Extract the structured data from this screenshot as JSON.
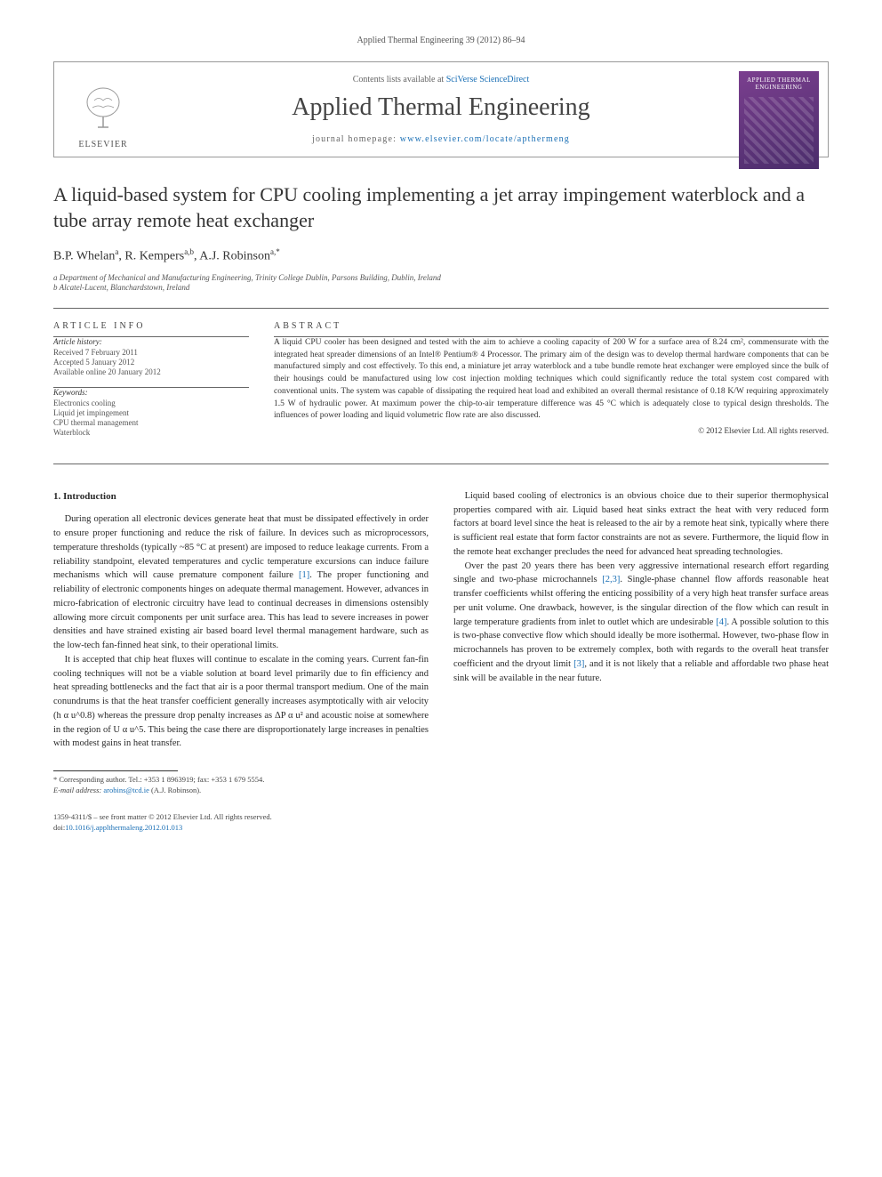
{
  "running_head": "Applied Thermal Engineering 39 (2012) 86–94",
  "masthead": {
    "contents_prefix": "Contents lists available at ",
    "contents_link": "SciVerse ScienceDirect",
    "journal_name": "Applied Thermal Engineering",
    "homepage_prefix": "journal homepage: ",
    "homepage_link": "www.elsevier.com/locate/apthermeng",
    "publisher_label": "ELSEVIER",
    "cover_title": "APPLIED THERMAL ENGINEERING"
  },
  "article": {
    "title": "A liquid-based system for CPU cooling implementing a jet array impingement waterblock and a tube array remote heat exchanger",
    "authors_html": "B.P. Whelan<sup>a</sup>, R. Kempers<sup>a,b</sup>, A.J. Robinson<sup>a,*</sup>",
    "affiliations": [
      "a Department of Mechanical and Manufacturing Engineering, Trinity College Dublin, Parsons Building, Dublin, Ireland",
      "b Alcatel-Lucent, Blanchardstown, Ireland"
    ]
  },
  "article_info": {
    "head": "ARTICLE INFO",
    "history_label": "Article history:",
    "history": [
      "Received 7 February 2011",
      "Accepted 5 January 2012",
      "Available online 20 January 2012"
    ],
    "keywords_label": "Keywords:",
    "keywords": [
      "Electronics cooling",
      "Liquid jet impingement",
      "CPU thermal management",
      "Waterblock"
    ]
  },
  "abstract": {
    "head": "ABSTRACT",
    "text": "A liquid CPU cooler has been designed and tested with the aim to achieve a cooling capacity of 200 W for a surface area of 8.24 cm², commensurate with the integrated heat spreader dimensions of an Intel® Pentium® 4 Processor. The primary aim of the design was to develop thermal hardware components that can be manufactured simply and cost effectively. To this end, a miniature jet array waterblock and a tube bundle remote heat exchanger were employed since the bulk of their housings could be manufactured using low cost injection molding techniques which could significantly reduce the total system cost compared with conventional units. The system was capable of dissipating the required heat load and exhibited an overall thermal resistance of 0.18 K/W requiring approximately 1.5 W of hydraulic power. At maximum power the chip-to-air temperature difference was 45 °C which is adequately close to typical design thresholds. The influences of power loading and liquid volumetric flow rate are also discussed.",
    "copyright": "© 2012 Elsevier Ltd. All rights reserved."
  },
  "body": {
    "section_head": "1. Introduction",
    "p1": "During operation all electronic devices generate heat that must be dissipated effectively in order to ensure proper functioning and reduce the risk of failure. In devices such as microprocessors, temperature thresholds (typically ~85 °C at present) are imposed to reduce leakage currents. From a reliability standpoint, elevated temperatures and cyclic temperature excursions can induce failure mechanisms which will cause premature component failure [1]. The proper functioning and reliability of electronic components hinges on adequate thermal management. However, advances in micro-fabrication of electronic circuitry have lead to continual decreases in dimensions ostensibly allowing more circuit components per unit surface area. This has lead to severe increases in power densities and have strained existing air based board level thermal management hardware, such as the low-tech fan-finned heat sink, to their operational limits.",
    "p2": "It is accepted that chip heat fluxes will continue to escalate in the coming years. Current fan-fin cooling techniques will not be a viable solution at board level primarily due to fin efficiency and heat spreading bottlenecks and the fact that air is a poor thermal transport medium. One of the main conundrums is that the heat transfer coefficient generally increases asymptotically with air velocity (h α u^0.8) whereas the pressure drop penalty increases as ΔP α u² and acoustic noise at somewhere in the region of U α u^5. This being the case there are disproportionately large increases in penalties with modest gains in heat transfer.",
    "p3": "Liquid based cooling of electronics is an obvious choice due to their superior thermophysical properties compared with air. Liquid based heat sinks extract the heat with very reduced form factors at board level since the heat is released to the air by a remote heat sink, typically where there is sufficient real estate that form factor constraints are not as severe. Furthermore, the liquid flow in the remote heat exchanger precludes the need for advanced heat spreading technologies.",
    "p4": "Over the past 20 years there has been very aggressive international research effort regarding single and two-phase microchannels [2,3]. Single-phase channel flow affords reasonable heat transfer coefficients whilst offering the enticing possibility of a very high heat transfer surface areas per unit volume. One drawback, however, is the singular direction of the flow which can result in large temperature gradients from inlet to outlet which are undesirable [4]. A possible solution to this is two-phase convective flow which should ideally be more isothermal. However, two-phase flow in microchannels has proven to be extremely complex, both with regards to the overall heat transfer coefficient and the dryout limit [3], and it is not likely that a reliable and affordable two phase heat sink will be available in the near future."
  },
  "footnotes": {
    "corr": "* Corresponding author. Tel.: +353 1 8963919; fax: +353 1 679 5554.",
    "email_label": "E-mail address: ",
    "email": "arobins@tcd.ie",
    "email_suffix": " (A.J. Robinson)."
  },
  "footer": {
    "issn_line": "1359-4311/$ – see front matter © 2012 Elsevier Ltd. All rights reserved.",
    "doi_prefix": "doi:",
    "doi": "10.1016/j.applthermaleng.2012.01.013"
  },
  "refs": {
    "r1": "[1]",
    "r23": "[2,3]",
    "r4": "[4]",
    "r3": "[3]"
  }
}
